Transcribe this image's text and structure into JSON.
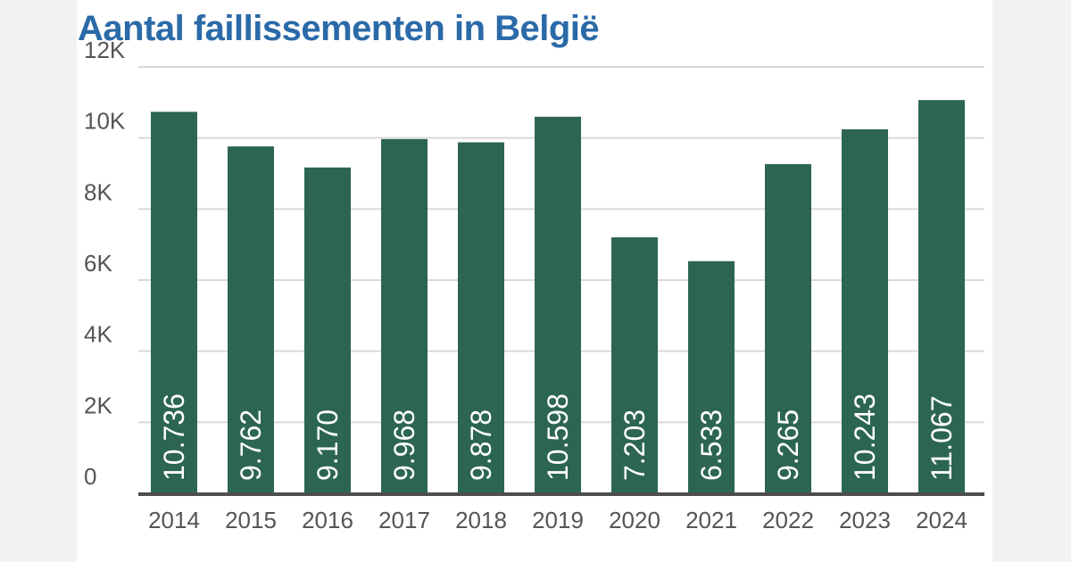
{
  "title": "Aantal faillissementen in België",
  "chart_data": {
    "type": "bar",
    "title": "Aantal faillissementen in België",
    "categories": [
      "2014",
      "2015",
      "2016",
      "2017",
      "2018",
      "2019",
      "2020",
      "2021",
      "2022",
      "2023",
      "2024"
    ],
    "values": [
      10736,
      9762,
      9170,
      9968,
      9878,
      10598,
      7203,
      6533,
      9265,
      10243,
      11067
    ],
    "value_labels": [
      "10.736",
      "9.762",
      "9.170",
      "9.968",
      "9.878",
      "10.598",
      "7.203",
      "6.533",
      "9.265",
      "10.243",
      "11.067"
    ],
    "y_ticks": [
      0,
      2000,
      4000,
      6000,
      8000,
      10000,
      12000
    ],
    "y_tick_labels": [
      "0",
      "2K",
      "4K",
      "6K",
      "8K",
      "10K",
      "12K"
    ],
    "ylim": [
      0,
      12000
    ],
    "grid": true,
    "xlabel": "",
    "ylabel": "",
    "colors": {
      "bar": "#2c6650",
      "title": "#2b6aa8",
      "grid": "#d9d9d9",
      "axis": "#4d4d4d",
      "value_label": "#ffffff",
      "tick_text": "#555555"
    }
  }
}
